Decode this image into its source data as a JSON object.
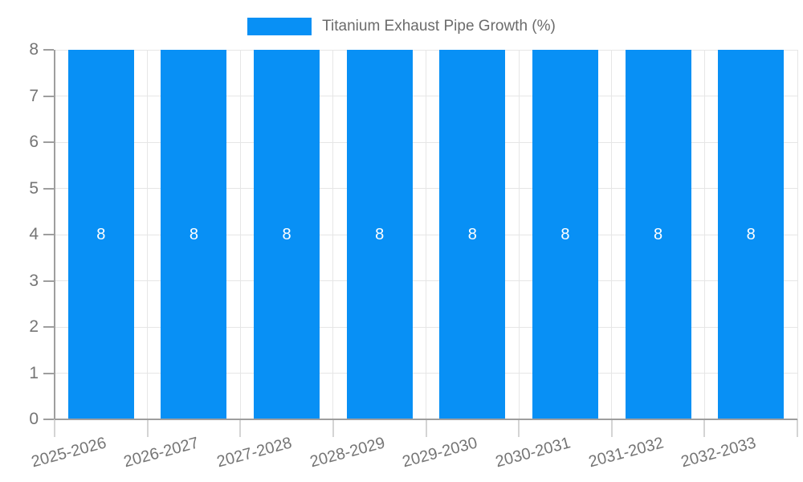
{
  "chart_data": {
    "type": "bar",
    "title": "Titanium Exhaust Pipe Growth (%)",
    "categories": [
      "2025-2026",
      "2026-2027",
      "2027-2028",
      "2028-2029",
      "2029-2030",
      "2030-2031",
      "2031-2032",
      "2032-2033"
    ],
    "series": [
      {
        "name": "Titanium Exhaust Pipe Growth (%)",
        "values": [
          8,
          8,
          8,
          8,
          8,
          8,
          8,
          8
        ]
      }
    ],
    "bar_labels": [
      "8",
      "8",
      "8",
      "8",
      "8",
      "8",
      "8",
      "8"
    ],
    "xlabel": "",
    "ylabel": "",
    "ylim": [
      0,
      8
    ],
    "yticks": [
      0,
      1,
      2,
      3,
      4,
      5,
      6,
      7,
      8
    ],
    "grid": true,
    "legend_position": "top",
    "colors": {
      "bar": "#0890F5",
      "grid": "#e6e6e6",
      "axis": "#9e9e9e",
      "x_tick": "#d4d4d4",
      "axis_label_text": "#757575",
      "legend_text": "#6b6b6b",
      "bar_label_text": "#ffffff",
      "background": "#ffffff"
    }
  }
}
